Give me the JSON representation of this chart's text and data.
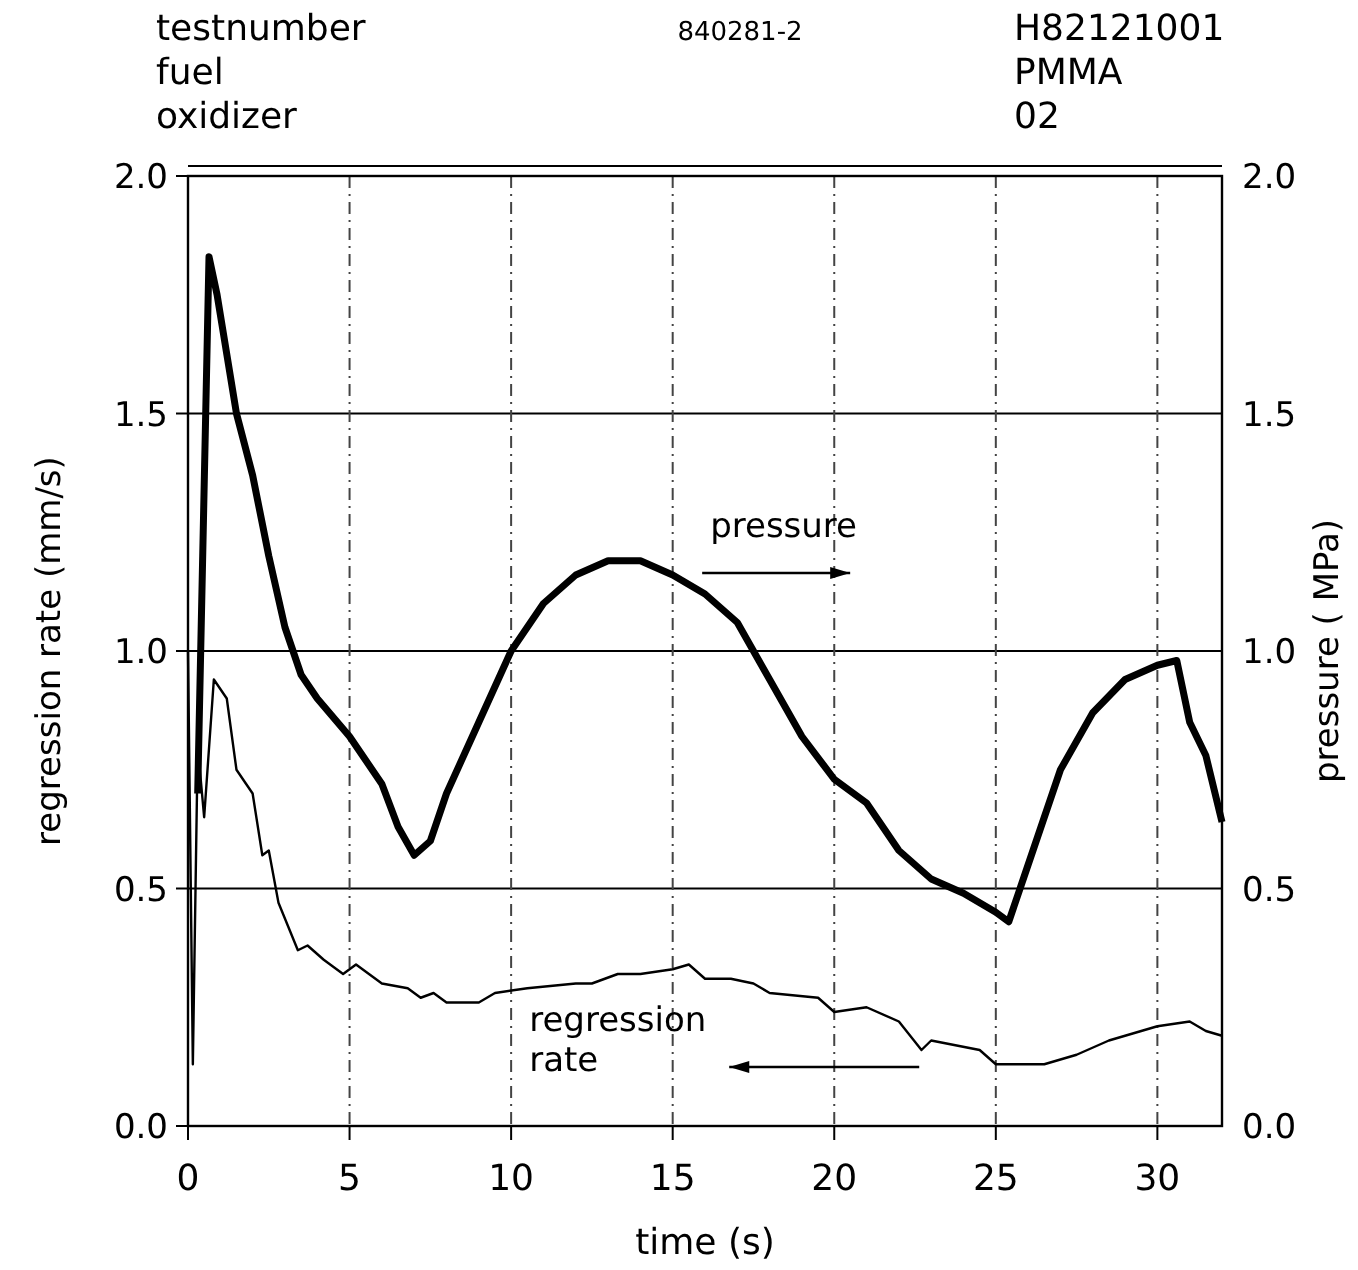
{
  "chart_data": {
    "type": "line",
    "xlabel": "time (s)",
    "ylabel": "regression rate (mm/s)",
    "y2label": "pressure ( MPa)",
    "annotations": [
      "testnumber",
      "fuel",
      "oxidizer",
      "840281-2",
      "H82121001",
      "PMMA",
      "02"
    ],
    "xlim": [
      0,
      32
    ],
    "xticks": [
      0,
      5,
      10,
      15,
      20,
      25,
      30
    ],
    "ylim": [
      0,
      2
    ],
    "yticks": [
      {
        "value": 0,
        "label": "0.0"
      },
      {
        "value": 0.5,
        "label": "0.5"
      },
      {
        "value": 1,
        "label": "1.0"
      },
      {
        "value": 1.5,
        "label": "1.5"
      },
      {
        "value": 2,
        "label": "2.0"
      }
    ],
    "y2lim": [
      0,
      2
    ],
    "y2ticks": [
      {
        "value": 0,
        "label": "0.0"
      },
      {
        "value": 0.5,
        "label": "0.5"
      },
      {
        "value": 1,
        "label": "1.0"
      },
      {
        "value": 1.5,
        "label": "1.5"
      },
      {
        "value": 2,
        "label": "2.0"
      }
    ],
    "grid": true,
    "series": [
      {
        "name": "pressure",
        "color": "#000000",
        "axis": "y2",
        "x": [
          0.3,
          0.65,
          0.9,
          1.5,
          2.0,
          2.5,
          3,
          3.5,
          4,
          5,
          6,
          6.5,
          7,
          7.5,
          8,
          9,
          10,
          11,
          12,
          13,
          14,
          15,
          16,
          17,
          18,
          19,
          20,
          21,
          22,
          23,
          24,
          25,
          25.4,
          26,
          27,
          28,
          29,
          30,
          30.6,
          31,
          31.5,
          32
        ],
        "values": [
          0.7,
          1.83,
          1.75,
          1.5,
          1.37,
          1.2,
          1.05,
          0.95,
          0.9,
          0.82,
          0.72,
          0.63,
          0.57,
          0.6,
          0.7,
          0.85,
          1.0,
          1.1,
          1.16,
          1.19,
          1.19,
          1.16,
          1.12,
          1.06,
          0.94,
          0.82,
          0.73,
          0.68,
          0.58,
          0.52,
          0.49,
          0.45,
          0.43,
          0.55,
          0.75,
          0.87,
          0.94,
          0.97,
          0.98,
          0.85,
          0.78,
          0.64
        ]
      },
      {
        "name": "regression rate",
        "color": "#000000",
        "x": [
          0,
          0.15,
          0.3,
          0.5,
          0.8,
          1.2,
          1.5,
          2.0,
          2.3,
          2.5,
          2.8,
          3.1,
          3.4,
          3.7,
          4.2,
          4.8,
          5.2,
          6,
          6.8,
          7.2,
          7.6,
          8,
          9,
          9.5,
          10.5,
          12,
          12.5,
          13.3,
          14,
          15,
          15.5,
          16,
          16.8,
          17.5,
          18,
          19.5,
          20,
          21,
          22,
          22.7,
          23,
          24.5,
          25,
          26.5,
          27.5,
          28.5,
          30,
          31,
          31.5,
          32
        ],
        "values": [
          1.0,
          0.13,
          0.8,
          0.65,
          0.94,
          0.9,
          0.75,
          0.7,
          0.57,
          0.58,
          0.47,
          0.42,
          0.37,
          0.38,
          0.35,
          0.32,
          0.34,
          0.3,
          0.29,
          0.27,
          0.28,
          0.26,
          0.26,
          0.28,
          0.29,
          0.3,
          0.3,
          0.32,
          0.32,
          0.33,
          0.34,
          0.31,
          0.31,
          0.3,
          0.28,
          0.27,
          0.24,
          0.25,
          0.22,
          0.16,
          0.18,
          0.16,
          0.13,
          0.13,
          0.15,
          0.18,
          0.21,
          0.22,
          0.2,
          0.19
        ]
      }
    ]
  }
}
